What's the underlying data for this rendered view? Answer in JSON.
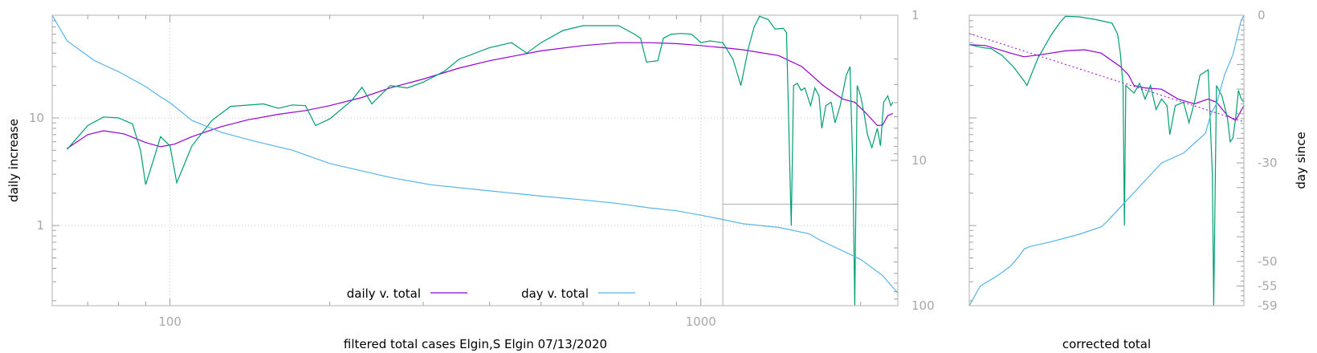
{
  "chart_data": [
    {
      "type": "line",
      "xlabel": "filtered total cases Elgin,S Elgin 07/13/2020",
      "ylabel": "daily increase",
      "y2label": "",
      "x_scale": "log",
      "y_scale": "log",
      "y2_scale": "log-reversed",
      "xlim": [
        60,
        2350
      ],
      "ylim": [
        0.18,
        90
      ],
      "y2lim": [
        1,
        100
      ],
      "x_ticks": [
        {
          "v": 100,
          "label": "100"
        },
        {
          "v": 1000,
          "label": "1000"
        }
      ],
      "y_ticks": [
        {
          "v": 1,
          "label": "1"
        },
        {
          "v": 10,
          "label": "10"
        }
      ],
      "y2_ticks": [
        {
          "v": 1,
          "label": "1"
        },
        {
          "v": 10,
          "label": "10"
        },
        {
          "v": 100,
          "label": "100"
        }
      ],
      "grid": true,
      "legend_position": "bottom-center",
      "reference_lines": {
        "x": 1100,
        "y2": 20
      },
      "series": [
        {
          "name": "daily v. total",
          "axis": "y",
          "color": "#9400d3",
          "points": [
            [
              64,
              5.2
            ],
            [
              70,
              7.0
            ],
            [
              75,
              7.6
            ],
            [
              82,
              7.1
            ],
            [
              90,
              5.9
            ],
            [
              96,
              5.4
            ],
            [
              102,
              5.7
            ],
            [
              110,
              6.7
            ],
            [
              125,
              8.3
            ],
            [
              140,
              9.6
            ],
            [
              160,
              10.8
            ],
            [
              180,
              11.7
            ],
            [
              200,
              13
            ],
            [
              230,
              15.5
            ],
            [
              260,
              19
            ],
            [
              300,
              23
            ],
            [
              350,
              29
            ],
            [
              400,
              34
            ],
            [
              500,
              42
            ],
            [
              600,
              47
            ],
            [
              700,
              50
            ],
            [
              800,
              50
            ],
            [
              900,
              49
            ],
            [
              1000,
              47
            ],
            [
              1100,
              45
            ],
            [
              1200,
              43
            ],
            [
              1400,
              38
            ],
            [
              1550,
              30
            ],
            [
              1700,
              20
            ],
            [
              1850,
              15
            ],
            [
              1950,
              14
            ],
            [
              2050,
              11
            ],
            [
              2150,
              8.5
            ],
            [
              2200,
              8.6
            ],
            [
              2250,
              10.5
            ],
            [
              2300,
              11
            ]
          ]
        },
        {
          "name": "",
          "axis": "y",
          "color": "#009e73",
          "points": [
            [
              64,
              5.1
            ],
            [
              70,
              8.5
            ],
            [
              75,
              10.2
            ],
            [
              80,
              10
            ],
            [
              85,
              8.8
            ],
            [
              88,
              5
            ],
            [
              90,
              2.4
            ],
            [
              93,
              4
            ],
            [
              96,
              6.7
            ],
            [
              100,
              5.5
            ],
            [
              103,
              2.5
            ],
            [
              110,
              5.5
            ],
            [
              120,
              9.5
            ],
            [
              130,
              12.8
            ],
            [
              150,
              13.5
            ],
            [
              160,
              12.3
            ],
            [
              170,
              13.2
            ],
            [
              180,
              13
            ],
            [
              188,
              8.5
            ],
            [
              200,
              9.8
            ],
            [
              220,
              14.5
            ],
            [
              230,
              19.3
            ],
            [
              240,
              13.5
            ],
            [
              260,
              20
            ],
            [
              280,
              19
            ],
            [
              300,
              21.5
            ],
            [
              330,
              27.5
            ],
            [
              350,
              35
            ],
            [
              400,
              45
            ],
            [
              440,
              50
            ],
            [
              470,
              40
            ],
            [
              500,
              50
            ],
            [
              550,
              65
            ],
            [
              600,
              72
            ],
            [
              700,
              72
            ],
            [
              750,
              60
            ],
            [
              770,
              55
            ],
            [
              790,
              33
            ],
            [
              830,
              34
            ],
            [
              850,
              55
            ],
            [
              880,
              60
            ],
            [
              920,
              61
            ],
            [
              960,
              60
            ],
            [
              980,
              55
            ],
            [
              1000,
              50
            ],
            [
              1040,
              52
            ],
            [
              1100,
              50
            ],
            [
              1150,
              35
            ],
            [
              1190,
              20
            ],
            [
              1230,
              45
            ],
            [
              1260,
              70
            ],
            [
              1290,
              88
            ],
            [
              1340,
              82
            ],
            [
              1380,
              67
            ],
            [
              1430,
              68
            ],
            [
              1450,
              62
            ],
            [
              1480,
              1.0
            ],
            [
              1495,
              20
            ],
            [
              1520,
              21
            ],
            [
              1545,
              18
            ],
            [
              1570,
              19
            ],
            [
              1610,
              13
            ],
            [
              1640,
              19
            ],
            [
              1670,
              16
            ],
            [
              1690,
              8
            ],
            [
              1720,
              13
            ],
            [
              1760,
              14
            ],
            [
              1790,
              9
            ],
            [
              1830,
              13
            ],
            [
              1880,
              25
            ],
            [
              1910,
              30
            ],
            [
              1935,
              3
            ],
            [
              1950,
              0.18
            ],
            [
              1970,
              20
            ],
            [
              2000,
              16
            ],
            [
              2030,
              11
            ],
            [
              2060,
              7
            ],
            [
              2100,
              5.3
            ],
            [
              2150,
              8
            ],
            [
              2180,
              5.5
            ],
            [
              2210,
              14
            ],
            [
              2250,
              16
            ],
            [
              2280,
              13
            ],
            [
              2300,
              14
            ]
          ]
        },
        {
          "name": "day v. total",
          "axis": "y2",
          "color": "#56b4e9",
          "points": [
            [
              60,
              1.0
            ],
            [
              64,
              1.5
            ],
            [
              72,
              2.05
            ],
            [
              80,
              2.45
            ],
            [
              90,
              3.1
            ],
            [
              96,
              3.65
            ],
            [
              100,
              4.0
            ],
            [
              110,
              5.3
            ],
            [
              125,
              6.4
            ],
            [
              145,
              7.4
            ],
            [
              170,
              8.5
            ],
            [
              200,
              10.5
            ],
            [
              260,
              13.1
            ],
            [
              310,
              14.7
            ],
            [
              400,
              16.2
            ],
            [
              500,
              17.6
            ],
            [
              600,
              18.7
            ],
            [
              700,
              19.8
            ],
            [
              800,
              21.2
            ],
            [
              900,
              22.2
            ],
            [
              1000,
              23.8
            ],
            [
              1100,
              25.5
            ],
            [
              1200,
              27.3
            ],
            [
              1400,
              28.9
            ],
            [
              1600,
              32
            ],
            [
              1680,
              35.5
            ],
            [
              1800,
              40
            ],
            [
              2000,
              48
            ],
            [
              2200,
              62
            ],
            [
              2350,
              82
            ]
          ]
        }
      ]
    },
    {
      "type": "line",
      "xlabel": "corrected total",
      "ylabel": "",
      "y2label": "day since",
      "x_scale": "linear",
      "y_scale": "log",
      "xlim": [
        0,
        100
      ],
      "ylim": [
        0.18,
        90
      ],
      "y2lim": [
        -59,
        0
      ],
      "y2_ticks": [
        {
          "v": 0,
          "label": "0"
        },
        {
          "v": -30,
          "label": "-30"
        },
        {
          "v": -50,
          "label": "-50"
        },
        {
          "v": -55,
          "label": "-55"
        },
        {
          "v": -59,
          "label": "-59"
        }
      ],
      "grid": false,
      "series": [
        {
          "name": "",
          "axis": "y",
          "color": "#9400d3",
          "points": [
            [
              0,
              48
            ],
            [
              6,
              47
            ],
            [
              15,
              40
            ],
            [
              20,
              37
            ],
            [
              27,
              39
            ],
            [
              35,
              42
            ],
            [
              42,
              43
            ],
            [
              48,
              40
            ],
            [
              55,
              30
            ],
            [
              58,
              25
            ],
            [
              60,
              20
            ],
            [
              64,
              19
            ],
            [
              70,
              18.5
            ],
            [
              76,
              15
            ],
            [
              82,
              13.5
            ],
            [
              87,
              15
            ],
            [
              90,
              14
            ],
            [
              94,
              10.5
            ],
            [
              97,
              9.5
            ],
            [
              100,
              13
            ]
          ]
        },
        {
          "name": "",
          "axis": "y",
          "color": "#009e73",
          "points": [
            [
              0,
              48
            ],
            [
              5,
              45
            ],
            [
              8,
              44
            ],
            [
              12,
              38
            ],
            [
              16,
              30
            ],
            [
              20,
              22
            ],
            [
              21,
              20
            ],
            [
              25,
              36
            ],
            [
              30,
              60
            ],
            [
              33,
              77
            ],
            [
              35,
              88
            ],
            [
              40,
              87
            ],
            [
              46,
              82
            ],
            [
              52,
              76
            ],
            [
              54,
              60
            ],
            [
              55,
              40
            ],
            [
              56,
              20
            ],
            [
              56.5,
              1.0
            ],
            [
              57,
              20
            ],
            [
              60,
              17
            ],
            [
              62,
              21
            ],
            [
              64,
              15
            ],
            [
              66,
              20
            ],
            [
              68,
              12
            ],
            [
              70,
              15
            ],
            [
              72,
              13
            ],
            [
              73,
              7
            ],
            [
              75,
              13
            ],
            [
              78,
              14
            ],
            [
              80,
              9
            ],
            [
              82,
              14
            ],
            [
              84,
              25
            ],
            [
              87,
              28
            ],
            [
              88.5,
              3
            ],
            [
              89,
              0.18
            ],
            [
              90,
              20
            ],
            [
              92,
              16
            ],
            [
              94,
              10
            ],
            [
              95,
              6
            ],
            [
              96,
              6.5
            ],
            [
              97,
              10
            ],
            [
              98,
              18
            ],
            [
              99,
              15
            ],
            [
              100,
              14
            ]
          ]
        },
        {
          "name": "",
          "axis": "y",
          "color": "#9400d3",
          "dashed": true,
          "points": [
            [
              0,
              61
            ],
            [
              100,
              9.2
            ]
          ]
        },
        {
          "name": "",
          "axis": "y2",
          "color": "#56b4e9",
          "points": [
            [
              0,
              -59
            ],
            [
              4,
              -55
            ],
            [
              10,
              -53
            ],
            [
              15,
              -51
            ],
            [
              18,
              -49
            ],
            [
              20,
              -47.5
            ],
            [
              22,
              -47
            ],
            [
              30,
              -46
            ],
            [
              40,
              -44.5
            ],
            [
              48,
              -43
            ],
            [
              50,
              -42
            ],
            [
              55,
              -39
            ],
            [
              60,
              -36
            ],
            [
              65,
              -33
            ],
            [
              70,
              -30
            ],
            [
              78,
              -28
            ],
            [
              82,
              -26
            ],
            [
              86,
              -24
            ],
            [
              88,
              -20
            ],
            [
              90,
              -18
            ],
            [
              93,
              -12
            ],
            [
              96,
              -8
            ],
            [
              99,
              -1
            ],
            [
              100,
              0
            ]
          ]
        }
      ]
    }
  ]
}
